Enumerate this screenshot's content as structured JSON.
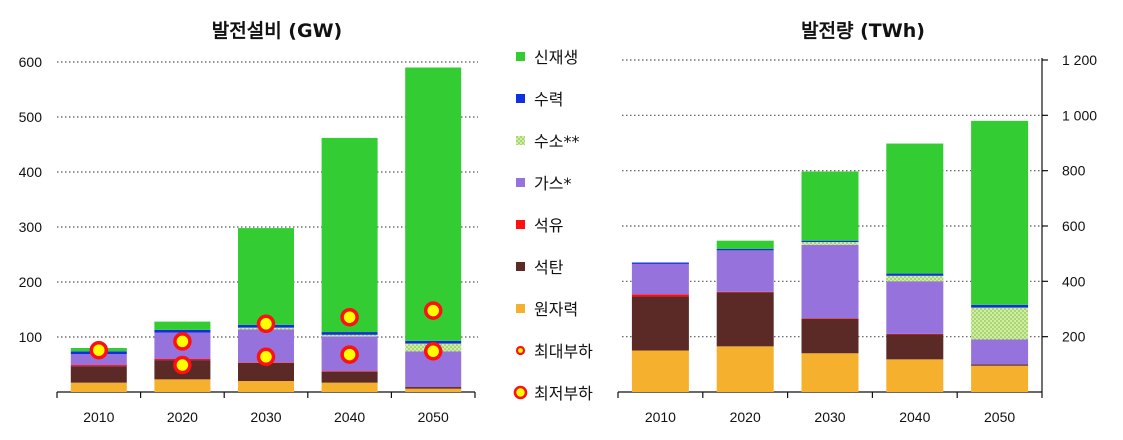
{
  "chart_data": [
    {
      "type": "bar",
      "stacked": true,
      "title": "발전설비 (GW)",
      "categories": [
        "2010",
        "2020",
        "2030",
        "2040",
        "2050"
      ],
      "ylim": [
        0,
        600
      ],
      "yticks": [
        100,
        200,
        300,
        400,
        500,
        600
      ],
      "grid": true,
      "series": [
        {
          "name": "원자력",
          "key": "nuclear",
          "values": [
            17,
            23,
            20,
            17,
            6
          ]
        },
        {
          "name": "석탄",
          "key": "coal",
          "values": [
            30,
            35,
            33,
            20,
            3
          ]
        },
        {
          "name": "석유",
          "key": "oil",
          "values": [
            2,
            2,
            1,
            1,
            0
          ]
        },
        {
          "name": "가스*",
          "key": "gas",
          "values": [
            20,
            48,
            60,
            63,
            65
          ]
        },
        {
          "name": "수소**",
          "key": "hydrogen",
          "values": [
            0,
            0,
            3,
            3,
            14
          ]
        },
        {
          "name": "수력",
          "key": "hydro",
          "values": [
            5,
            5,
            5,
            5,
            5
          ]
        },
        {
          "name": "신재생",
          "key": "renew",
          "values": [
            6,
            15,
            176,
            353,
            497
          ]
        }
      ],
      "markers": [
        {
          "name": "최대부하",
          "key": "peak",
          "values": [
            null,
            49,
            64,
            68,
            74
          ]
        },
        {
          "name": "최저부하",
          "key": "min",
          "values": [
            76,
            92,
            124,
            136,
            148
          ]
        }
      ]
    },
    {
      "type": "bar",
      "stacked": true,
      "title": "발전량 (TWh)",
      "categories": [
        "2010",
        "2020",
        "2030",
        "2040",
        "2050"
      ],
      "ylim": [
        0,
        1200
      ],
      "yticks": [
        200,
        400,
        600,
        800,
        "1 000",
        "1 200"
      ],
      "ytick_values": [
        200,
        400,
        600,
        800,
        1000,
        1200
      ],
      "y_axis_side": "right",
      "grid": true,
      "series": [
        {
          "name": "원자력",
          "key": "nuclear",
          "values": [
            150,
            165,
            140,
            118,
            95
          ]
        },
        {
          "name": "석탄",
          "key": "coal",
          "values": [
            195,
            195,
            125,
            90,
            5
          ]
        },
        {
          "name": "석유",
          "key": "oil",
          "values": [
            8,
            2,
            2,
            2,
            0
          ]
        },
        {
          "name": "가스*",
          "key": "gas",
          "values": [
            110,
            150,
            265,
            190,
            90
          ]
        },
        {
          "name": "수소**",
          "key": "hydrogen",
          "values": [
            0,
            0,
            10,
            20,
            115
          ]
        },
        {
          "name": "수력",
          "key": "hydro",
          "values": [
            5,
            5,
            5,
            8,
            10
          ]
        },
        {
          "name": "신재생",
          "key": "renew",
          "values": [
            0,
            30,
            250,
            470,
            665
          ]
        }
      ]
    }
  ],
  "legend": {
    "placement": "center",
    "items": [
      {
        "label": "신재생",
        "key": "renew",
        "kind": "square"
      },
      {
        "label": "수력",
        "key": "hydro",
        "kind": "square"
      },
      {
        "label": "수소**",
        "key": "hydrogen",
        "kind": "square"
      },
      {
        "label": "가스*",
        "key": "gas",
        "kind": "square"
      },
      {
        "label": "석유",
        "key": "oil",
        "kind": "square"
      },
      {
        "label": "석탄",
        "key": "coal",
        "kind": "square"
      },
      {
        "label": "원자력",
        "key": "nuclear",
        "kind": "square"
      },
      {
        "label": "최대부하",
        "key": "peak",
        "kind": "circle"
      },
      {
        "label": "최저부하",
        "key": "min",
        "kind": "circle"
      }
    ]
  },
  "colors": {
    "nuclear": "#f5b02e",
    "coal": "#5b2a26",
    "oil": "#ff1010",
    "gas": "#9672dc",
    "hydrogen": "#b8e07a",
    "hydro": "#1030e0",
    "renew": "#33cc33",
    "marker_fill": "#ffff00",
    "marker_stroke": "#ff1010"
  }
}
